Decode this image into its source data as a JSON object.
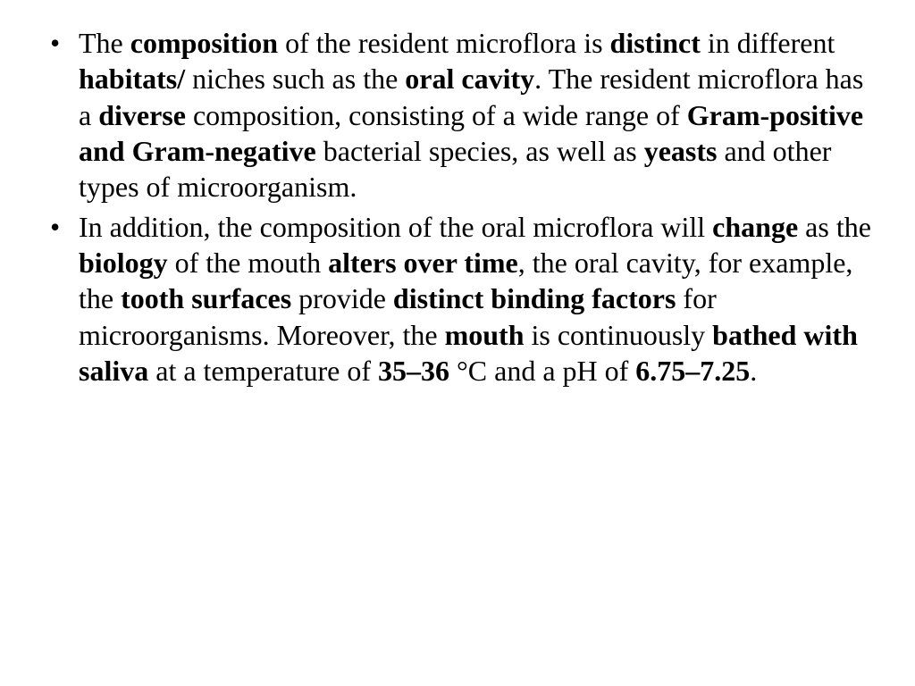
{
  "typography": {
    "font_family": "Times New Roman",
    "font_size_pt": 24,
    "line_height": 1.26,
    "text_color": "#000000",
    "background_color": "#ffffff",
    "bullet_glyph": "•"
  },
  "bullets": [
    {
      "runs": [
        {
          "t": "The ",
          "b": false
        },
        {
          "t": "composition",
          "b": true
        },
        {
          "t": " of the resident microflora is ",
          "b": false
        },
        {
          "t": "distinct",
          "b": true
        },
        {
          "t": " in different ",
          "b": false
        },
        {
          "t": "habitats/",
          "b": true
        },
        {
          "t": " niches such as the ",
          "b": false
        },
        {
          "t": "oral cavity",
          "b": true
        },
        {
          "t": ". The resident microflora has a ",
          "b": false
        },
        {
          "t": "diverse",
          "b": true
        },
        {
          "t": " composition, consisting of a wide range of ",
          "b": false
        },
        {
          "t": "Gram-positive and Gram-negative",
          "b": true
        },
        {
          "t": " bacterial species, as well as ",
          "b": false
        },
        {
          "t": "yeasts",
          "b": true
        },
        {
          "t": " and other types of microorganism.",
          "b": false
        }
      ]
    },
    {
      "runs": [
        {
          "t": " In addition, the composition of the oral microflora will ",
          "b": false
        },
        {
          "t": "change",
          "b": true
        },
        {
          "t": " as the ",
          "b": false
        },
        {
          "t": "biology",
          "b": true
        },
        {
          "t": " of the mouth ",
          "b": false
        },
        {
          "t": "alters over time",
          "b": true
        },
        {
          "t": ", the oral cavity, for example, the ",
          "b": false
        },
        {
          "t": "tooth surfaces",
          "b": true
        },
        {
          "t": " provide ",
          "b": false
        },
        {
          "t": "distinct binding factors",
          "b": true
        },
        {
          "t": " for microorganisms. Moreover, the ",
          "b": false
        },
        {
          "t": "mouth",
          "b": true
        },
        {
          "t": " is continuously ",
          "b": false
        },
        {
          "t": "bathed with saliva",
          "b": true
        },
        {
          "t": " at a temperature of ",
          "b": false
        },
        {
          "t": "35–36",
          "b": true
        },
        {
          "t": " °C and a pH of ",
          "b": false
        },
        {
          "t": "6.75–7.25",
          "b": true
        },
        {
          "t": ".",
          "b": false
        }
      ]
    }
  ]
}
